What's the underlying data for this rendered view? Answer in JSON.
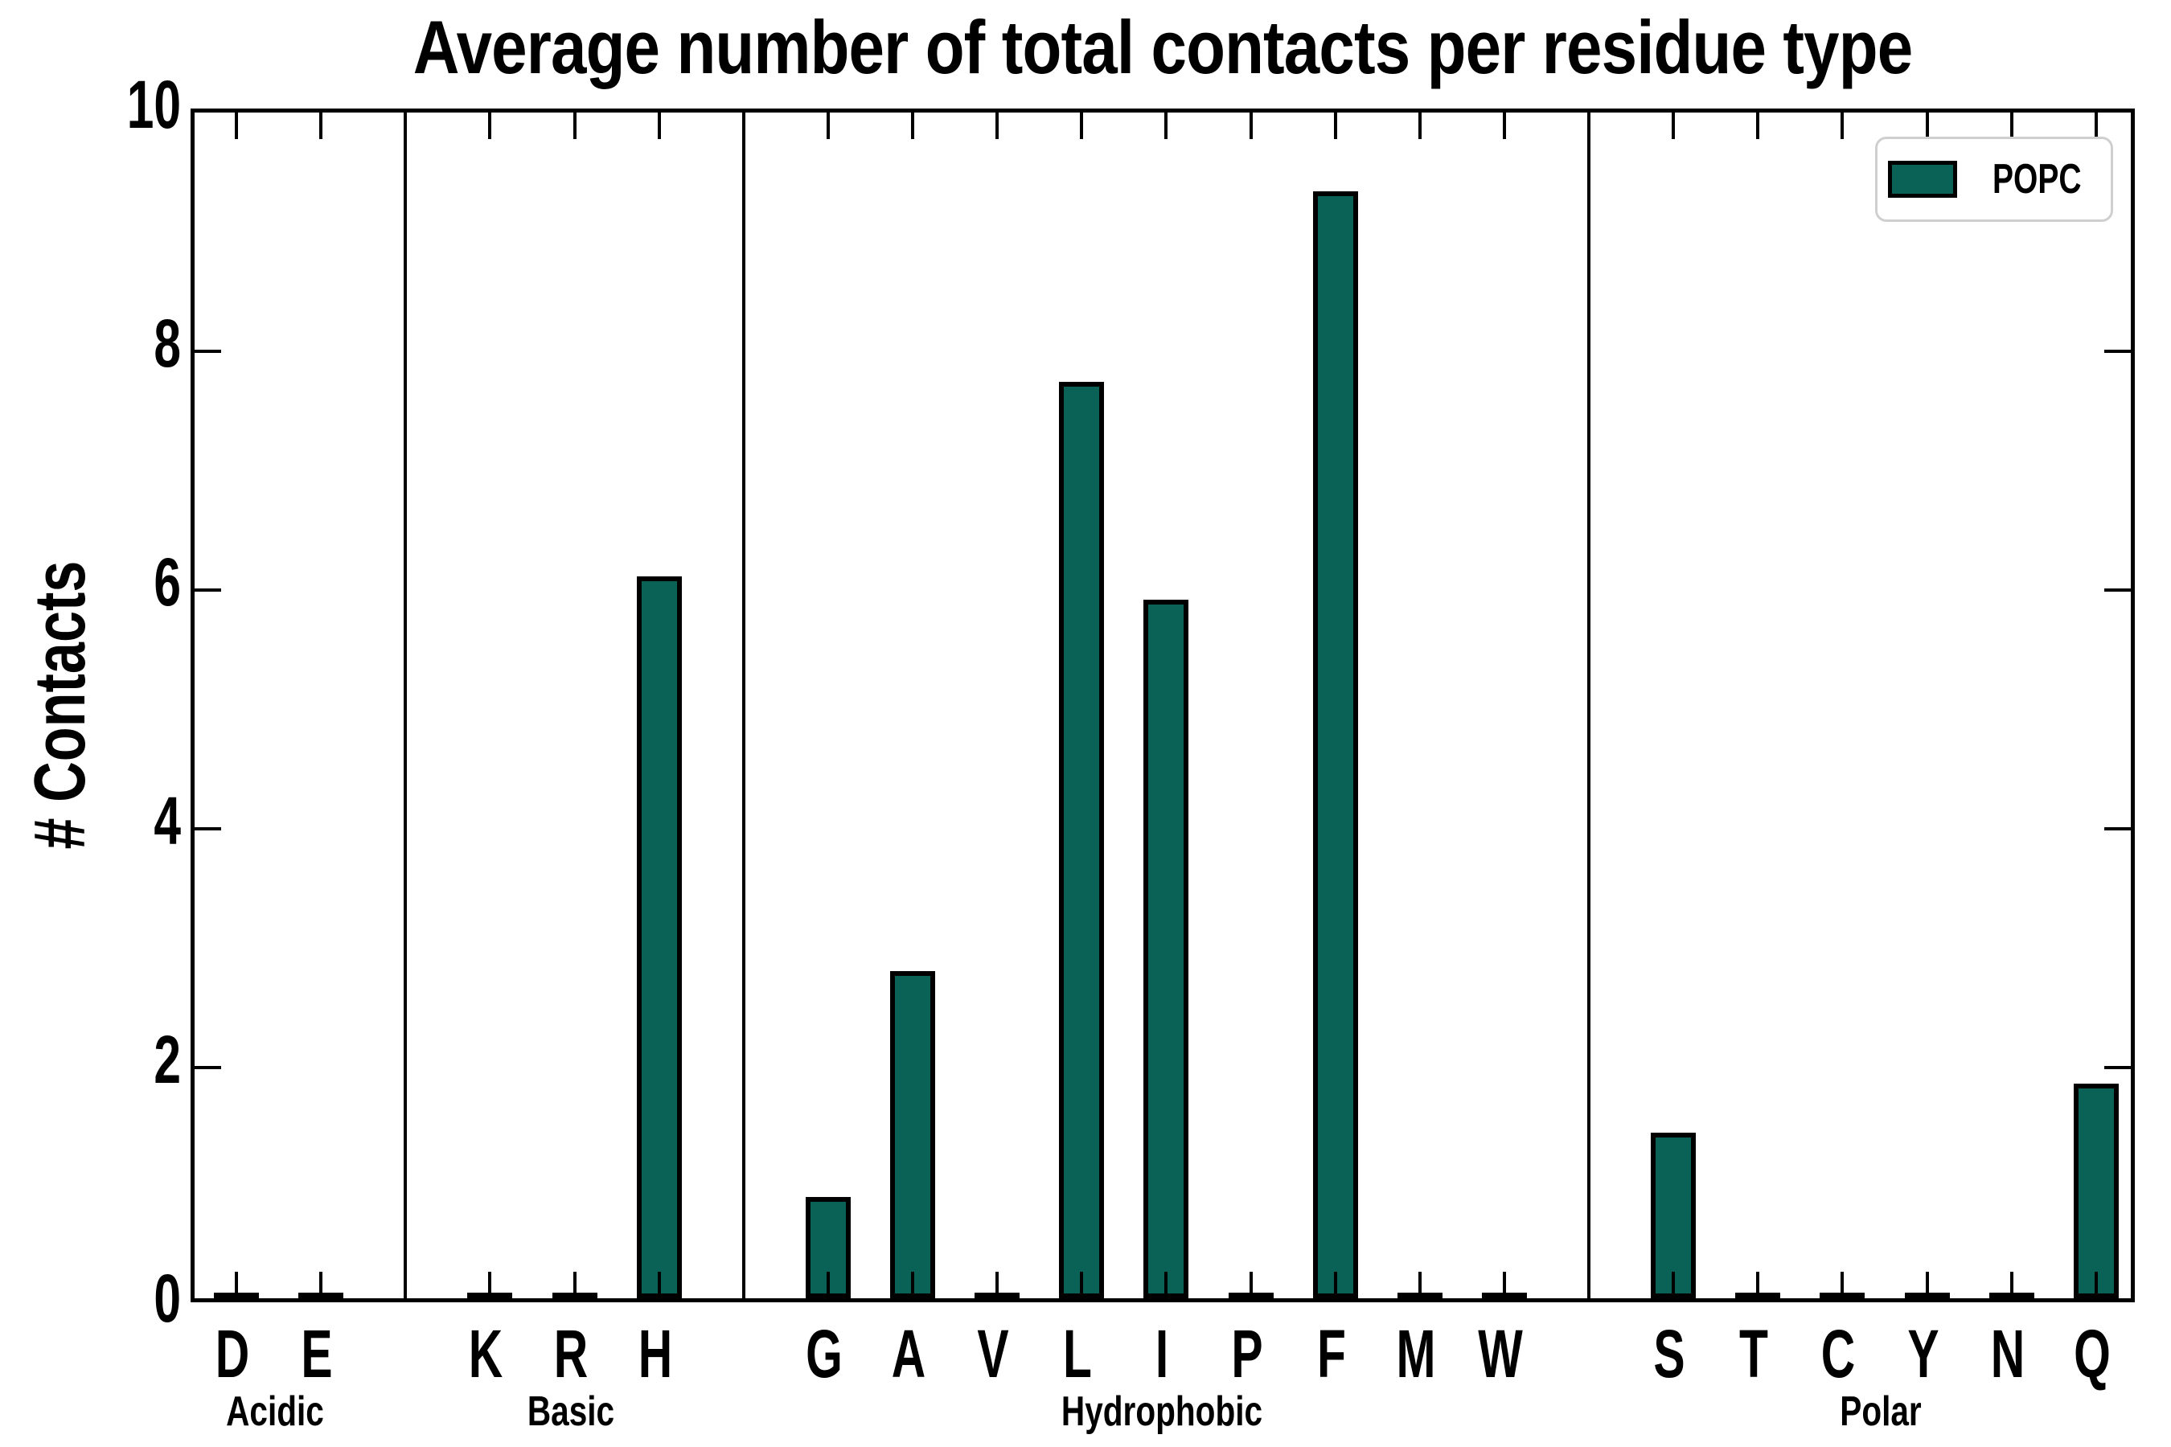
{
  "chart_data": {
    "type": "bar",
    "title": "Average number of total contacts per residue type",
    "ylabel": "# Contacts",
    "xlabel": "",
    "ylim": [
      0,
      10
    ],
    "yticks": [
      0,
      2,
      4,
      6,
      8,
      10
    ],
    "yticklabels": [
      "0",
      "2",
      "4",
      "6",
      "8",
      "10"
    ],
    "categories": [
      "D",
      "E",
      "K",
      "R",
      "H",
      "G",
      "A",
      "V",
      "L",
      "I",
      "P",
      "F",
      "M",
      "W",
      "S",
      "T",
      "C",
      "Y",
      "N",
      "Q"
    ],
    "values": [
      0.02,
      0.02,
      0.02,
      0.02,
      6.05,
      0.85,
      2.74,
      0.02,
      7.68,
      5.85,
      0.02,
      9.27,
      0.02,
      0.02,
      1.39,
      0.02,
      0.02,
      0.02,
      0.02,
      1.8
    ],
    "groups": [
      {
        "label": "Acidic",
        "members": [
          "D",
          "E"
        ]
      },
      {
        "label": "Basic",
        "members": [
          "K",
          "R",
          "H"
        ]
      },
      {
        "label": "Hydrophobic",
        "members": [
          "G",
          "A",
          "V",
          "L",
          "I",
          "P",
          "F",
          "M",
          "W"
        ]
      },
      {
        "label": "Polar",
        "members": [
          "S",
          "T",
          "C",
          "Y",
          "N",
          "Q"
        ]
      }
    ],
    "legend": [
      {
        "label": "POPC",
        "color": "#0A6156"
      }
    ],
    "legend_position": "upper right",
    "bar_color": "#0A6156",
    "bar_edge_color": "#000000",
    "grid": false
  }
}
